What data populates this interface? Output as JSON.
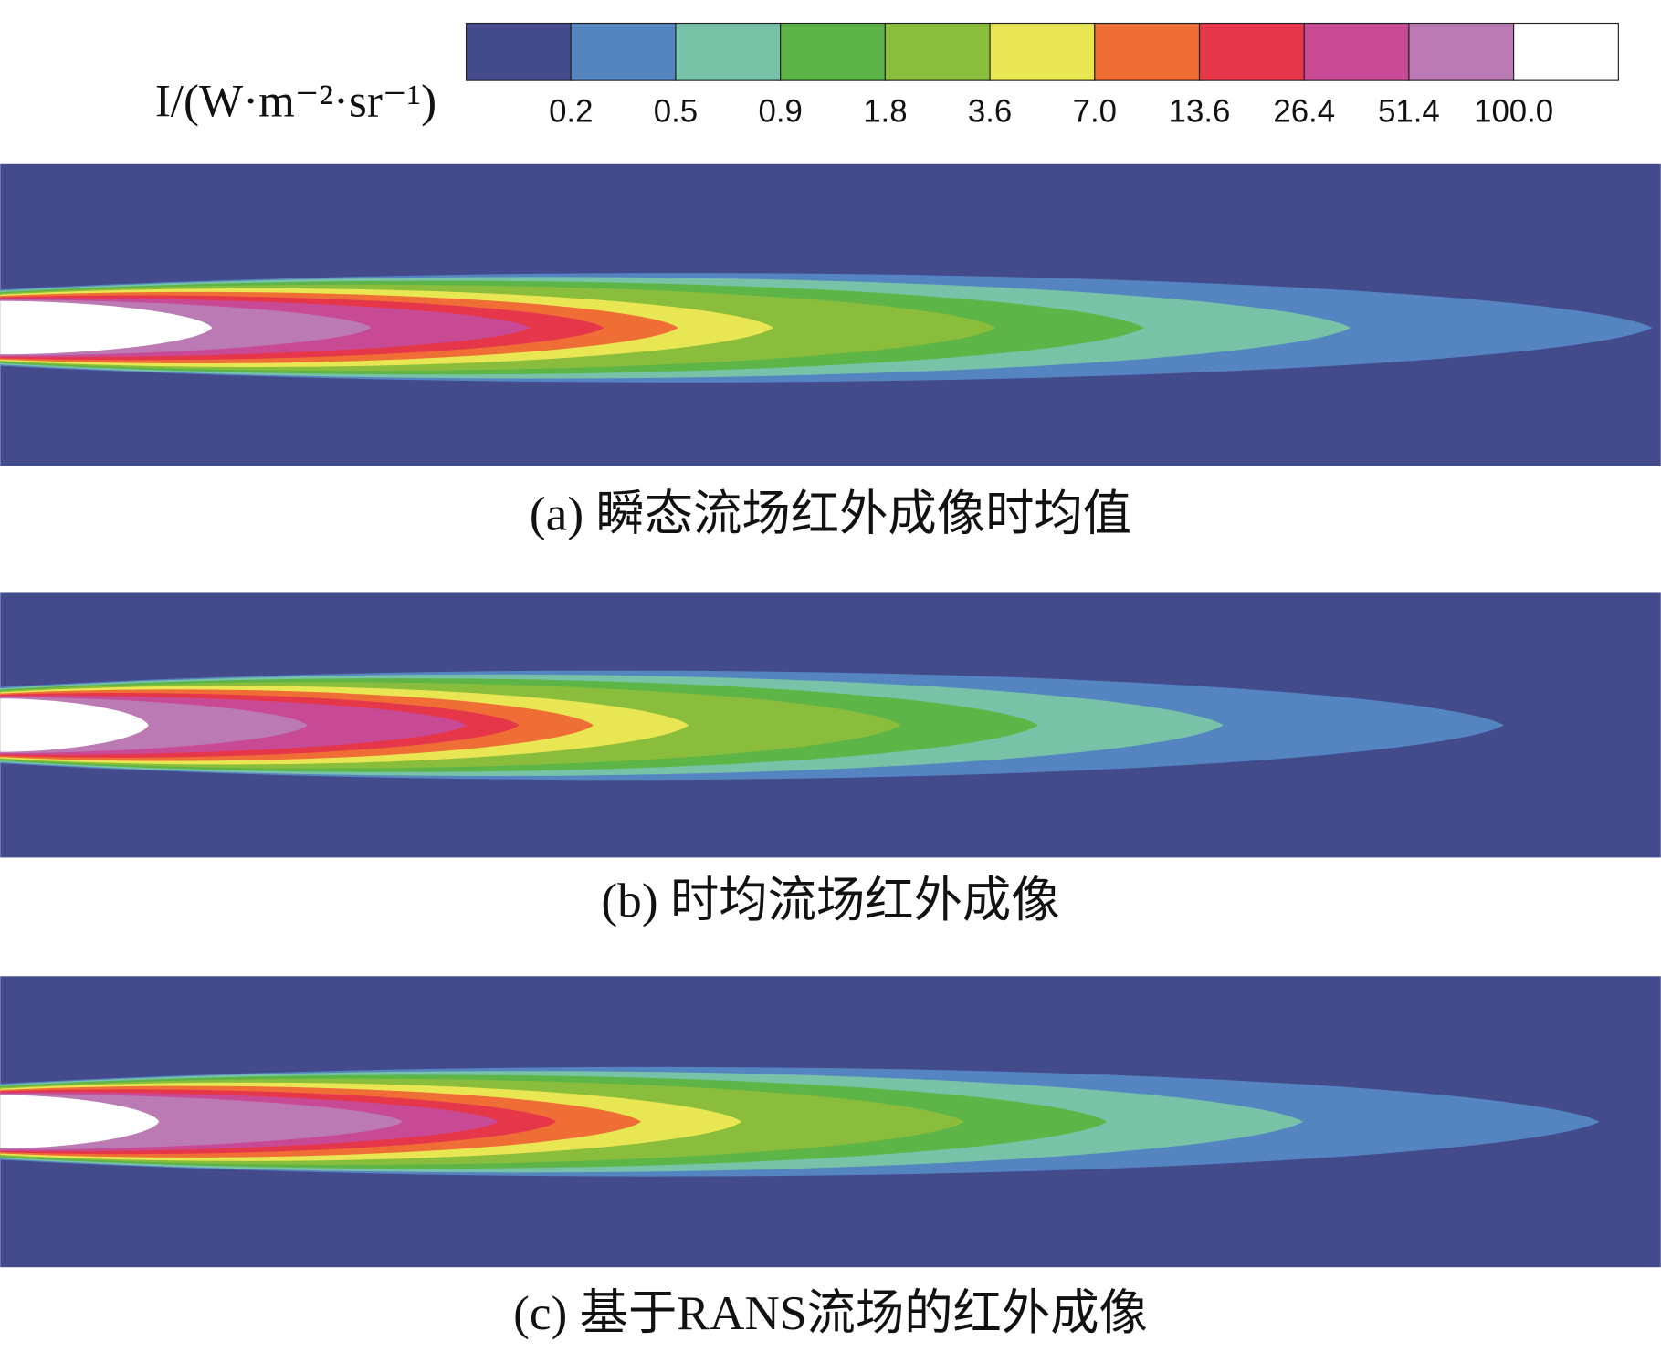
{
  "colorbar": {
    "label": "I/(W·m⁻²·sr⁻¹)",
    "colors": [
      "#434b8d",
      "#5585c0",
      "#78c3a8",
      "#5db548",
      "#8abd3c",
      "#e8e653",
      "#ee6e35",
      "#e6364a",
      "#c84a95",
      "#bc7ab5",
      "#ffffff"
    ],
    "ticks": [
      0.2,
      0.5,
      0.9,
      1.8,
      3.6,
      {
        "value": 7,
        "label": "7.0"
      },
      13.6,
      26.4,
      51.4,
      {
        "value": 100,
        "label": "100.0"
      }
    ]
  },
  "panels": [
    {
      "caption": "(a) 瞬态流场红外成像时均值"
    },
    {
      "caption": "(b) 时均流场红外成像"
    },
    {
      "caption": "(c) 基于RANS流场的红外成像"
    }
  ]
}
